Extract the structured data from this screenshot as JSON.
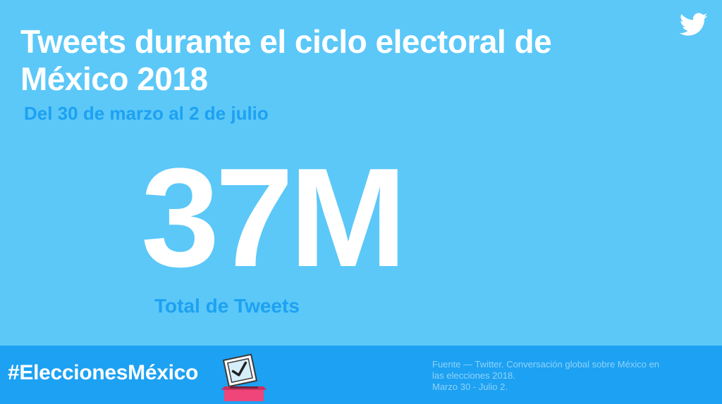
{
  "title": "Tweets durante el ciclo electoral de México 2018",
  "subtitle": "Del 30 de marzo al 2 de julio",
  "stat": {
    "value": "37M",
    "label": "Total de Tweets"
  },
  "footer": {
    "hashtag": "#EleccionesMéxico",
    "source_lines": [
      "Fuente — Twitter. Conversación global sobre México en",
      "las elecciones 2018.",
      "Marzo 30 - Julio 2."
    ]
  },
  "colors": {
    "background": "#5BC8F8",
    "footer": "#1DA1F2",
    "accent_text": "#1DA1F2",
    "ballot_box": "#F0457A"
  },
  "icons": {
    "brand": "twitter-bird-icon",
    "ballot": "ballot-box-icon"
  }
}
